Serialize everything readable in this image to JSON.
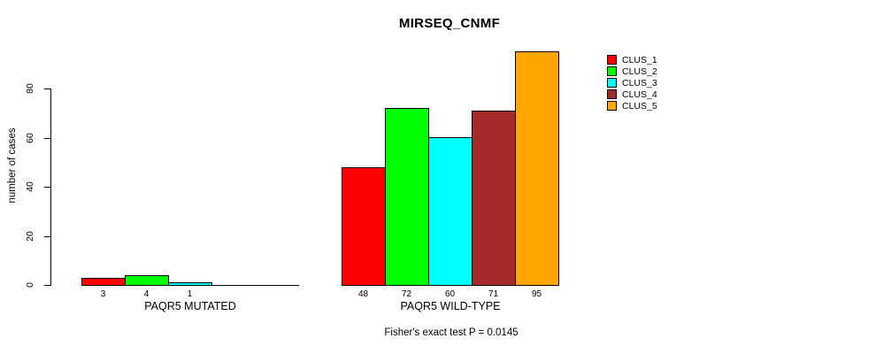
{
  "chart_data": {
    "type": "bar",
    "title": "MIRSEQ_CNMF",
    "ylabel": "number of cases",
    "xlabel": "",
    "ylim": [
      0,
      95
    ],
    "yticks": [
      0,
      20,
      40,
      60,
      80
    ],
    "grid": false,
    "legend_position": "right-outside",
    "series": [
      {
        "name": "CLUS_1",
        "color": "#FF0000"
      },
      {
        "name": "CLUS_2",
        "color": "#00FF00"
      },
      {
        "name": "CLUS_3",
        "color": "#00FFFF"
      },
      {
        "name": "CLUS_4",
        "color": "#A52A2A"
      },
      {
        "name": "CLUS_5",
        "color": "#FFA500"
      }
    ],
    "groups": [
      {
        "label": "PAQR5 MUTATED",
        "values": [
          3,
          4,
          1,
          0,
          0
        ],
        "value_labels": [
          "3",
          "4",
          "1",
          "",
          ""
        ]
      },
      {
        "label": "PAQR5 WILD-TYPE",
        "values": [
          48,
          72,
          60,
          71,
          95
        ],
        "value_labels": [
          "48",
          "72",
          "60",
          "71",
          "95"
        ]
      }
    ],
    "annotation": "Fisher's exact test P = 0.0145"
  }
}
